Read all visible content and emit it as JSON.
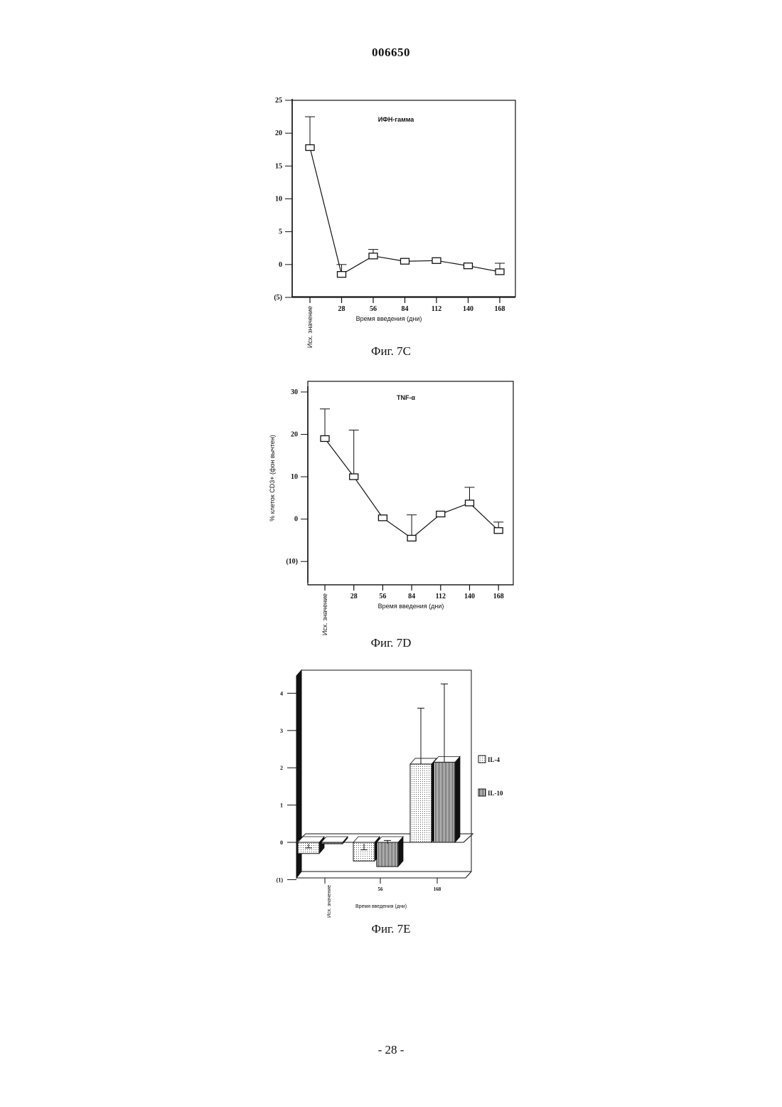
{
  "page": {
    "header": "006650",
    "footer": "- 28 -"
  },
  "figures": [
    {
      "caption": "Фиг. 7C"
    },
    {
      "caption": "Фиг. 7D"
    },
    {
      "caption": "Фиг. 7E"
    }
  ],
  "chart_data": [
    {
      "type": "line",
      "title": "ИФН-гамма",
      "xlabel": "Время введения (дни)",
      "ylabel": "",
      "categories": [
        "Исх. значение",
        "28",
        "56",
        "84",
        "112",
        "140",
        "168"
      ],
      "values": [
        17.8,
        -1.5,
        1.3,
        0.5,
        0.6,
        -0.2,
        -1.1
      ],
      "error_upper": [
        22.5,
        0.0,
        2.3,
        null,
        null,
        null,
        0.2
      ],
      "ylim": [
        -5,
        25
      ],
      "yticks": [
        25,
        20,
        15,
        10,
        5,
        0,
        -5
      ],
      "ytick_labels": [
        "25",
        "20",
        "15",
        "10",
        "5",
        "0",
        "(5)"
      ]
    },
    {
      "type": "line",
      "title": "TNF-α",
      "xlabel": "Время введения (дни)",
      "ylabel": "% клеток CD3+ (фон вычтен)",
      "categories": [
        "Исх. значение",
        "28",
        "56",
        "84",
        "112",
        "140",
        "168"
      ],
      "values": [
        19.0,
        10.0,
        0.3,
        -4.5,
        1.2,
        3.8,
        -2.7
      ],
      "error_upper": [
        26.0,
        21.0,
        null,
        1.0,
        null,
        7.5,
        -0.7
      ],
      "ylim": [
        -15,
        31
      ],
      "yticks": [
        30,
        20,
        10,
        0,
        -10
      ],
      "ytick_labels": [
        "30",
        "20",
        "10",
        "0",
        "(10)"
      ]
    },
    {
      "type": "bar",
      "title": "",
      "xlabel": "Время введения (дни)",
      "ylabel": "",
      "categories": [
        "Исх. значение",
        "56",
        "168"
      ],
      "series": [
        {
          "name": "IL-4",
          "values": [
            -0.3,
            -0.5,
            2.1
          ],
          "error_upper": [
            -0.15,
            -0.2,
            3.6
          ],
          "color": "#d8d8d8"
        },
        {
          "name": "IL-10",
          "values": [
            0.0,
            -0.65,
            2.15
          ],
          "error_upper": [
            null,
            0.05,
            4.25
          ],
          "color": "#9a9a9a"
        }
      ],
      "ylim": [
        -1,
        4.5
      ],
      "yticks": [
        4,
        3,
        2,
        1,
        0,
        -1
      ],
      "ytick_labels": [
        "4",
        "3",
        "2",
        "1",
        "0",
        "(1)"
      ],
      "legend": "right"
    }
  ]
}
